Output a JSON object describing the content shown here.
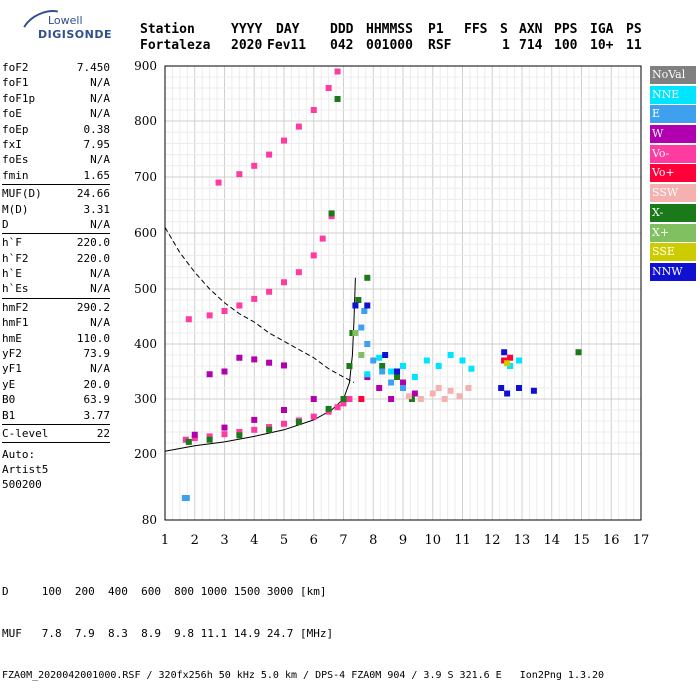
{
  "logo": {
    "line1": "Lowell",
    "line2": "DIGISONDE"
  },
  "header": {
    "labels": [
      "Station",
      "YYYY",
      "DAY",
      "DDD",
      "HHMMSS",
      "P1",
      "FFS",
      "S",
      "AXN",
      "PPS",
      "IGA",
      "PS"
    ],
    "values": [
      "Fortaleza",
      "2020",
      "Fev11",
      "042",
      "001000",
      "RSF",
      "1",
      "714",
      "100",
      "10+",
      "11"
    ]
  },
  "params": [
    {
      "name": "foF2",
      "value": "7.450"
    },
    {
      "name": "foF1",
      "value": "N/A"
    },
    {
      "name": "foF1p",
      "value": "N/A"
    },
    {
      "name": "foE",
      "value": "N/A"
    },
    {
      "name": "foEp",
      "value": "0.38"
    },
    {
      "name": "fxI",
      "value": "7.95"
    },
    {
      "name": "foEs",
      "value": "N/A"
    },
    {
      "name": "fmin",
      "value": "1.65"
    },
    {
      "name": "MUF(D)",
      "value": "24.66"
    },
    {
      "name": "M(D)",
      "value": "3.31"
    },
    {
      "name": "D",
      "value": "N/A"
    },
    {
      "name": "h`F",
      "value": "220.0"
    },
    {
      "name": "h`F2",
      "value": "220.0"
    },
    {
      "name": "h`E",
      "value": "N/A"
    },
    {
      "name": "h`Es",
      "value": "N/A"
    },
    {
      "name": "hmF2",
      "value": "290.2"
    },
    {
      "name": "hmF1",
      "value": "N/A"
    },
    {
      "name": "hmE",
      "value": "110.0"
    },
    {
      "name": "yF2",
      "value": "73.9"
    },
    {
      "name": "yF1",
      "value": "N/A"
    },
    {
      "name": "yE",
      "value": "20.0"
    },
    {
      "name": "B0",
      "value": "63.9"
    },
    {
      "name": "B1",
      "value": "3.77"
    },
    {
      "name": "C-level",
      "value": "22"
    }
  ],
  "auto": {
    "line1": "Auto:",
    "line2": "Artist5",
    "line3": "500200"
  },
  "legend": [
    {
      "label": "NoVal",
      "color": "#808080"
    },
    {
      "label": "NNE",
      "color": "#00e5ff"
    },
    {
      "label": "E",
      "color": "#3fa0f0"
    },
    {
      "label": "W",
      "color": "#b000b0"
    },
    {
      "label": "Vo-",
      "color": "#ff3aa0"
    },
    {
      "label": "Vo+",
      "color": "#ff0038"
    },
    {
      "label": "SSW",
      "color": "#f5b0b0"
    },
    {
      "label": "X-",
      "color": "#1a7a1a"
    },
    {
      "label": "X+",
      "color": "#80c060"
    },
    {
      "label": "SSE",
      "color": "#cccc00"
    },
    {
      "label": "NNW",
      "color": "#1010d0"
    }
  ],
  "footer": {
    "line1": "D     100  200  400  600  800 1000 1500 3000 [km]",
    "line2": "MUF   7.8  7.9  8.3  8.9  9.8 11.1 14.9 24.7 [MHz]",
    "line3": "FZA0M_2020042001000.RSF / 320fx256h 50 kHz 5.0 km / DPS-4 FZA0M 904 / 3.9 S 321.6 E   Ion2Png 1.3.20"
  },
  "chart_data": {
    "type": "scatter",
    "xlim": [
      1,
      17
    ],
    "ylim": [
      80,
      900
    ],
    "x_ticks": [
      1,
      2,
      3,
      4,
      5,
      6,
      7,
      8,
      9,
      10,
      11,
      12,
      13,
      14,
      15,
      16,
      17
    ],
    "y_ticks": [
      80,
      200,
      300,
      400,
      500,
      600,
      700,
      800,
      900
    ],
    "grid": true,
    "series": [
      {
        "name": "Vo-",
        "color": "#ff3aa0",
        "points": [
          [
            1.7,
            226
          ],
          [
            2,
            229
          ],
          [
            2.5,
            232
          ],
          [
            3,
            236
          ],
          [
            3.5,
            240
          ],
          [
            4,
            244
          ],
          [
            4.5,
            249
          ],
          [
            5,
            255
          ],
          [
            5.5,
            261
          ],
          [
            6,
            268
          ],
          [
            6.5,
            277
          ],
          [
            6.8,
            285
          ],
          [
            7,
            292
          ],
          [
            7.2,
            300
          ],
          [
            1.8,
            445
          ],
          [
            2.5,
            452
          ],
          [
            3,
            460
          ],
          [
            3.5,
            470
          ],
          [
            4,
            482
          ],
          [
            4.5,
            495
          ],
          [
            5,
            512
          ],
          [
            5.5,
            530
          ],
          [
            6,
            560
          ],
          [
            6.3,
            590
          ],
          [
            6.6,
            630
          ],
          [
            2.8,
            690
          ],
          [
            3.5,
            705
          ],
          [
            4,
            720
          ],
          [
            4.5,
            740
          ],
          [
            5,
            765
          ],
          [
            5.5,
            790
          ],
          [
            6,
            820
          ],
          [
            6.5,
            860
          ],
          [
            6.8,
            890
          ]
        ]
      },
      {
        "name": "W",
        "color": "#b000b0",
        "points": [
          [
            2,
            235
          ],
          [
            3,
            248
          ],
          [
            4,
            262
          ],
          [
            5,
            280
          ],
          [
            6,
            300
          ],
          [
            3.5,
            375
          ],
          [
            4,
            372
          ],
          [
            4.5,
            366
          ],
          [
            5,
            361
          ],
          [
            2.5,
            345
          ],
          [
            3,
            350
          ],
          [
            7.8,
            340
          ],
          [
            8.2,
            320
          ],
          [
            8.6,
            300
          ],
          [
            9,
            330
          ],
          [
            9.4,
            310
          ],
          [
            12.4,
            370
          ],
          [
            12.6,
            360
          ]
        ]
      },
      {
        "name": "X-",
        "color": "#1a7a1a",
        "points": [
          [
            1.8,
            222
          ],
          [
            2.5,
            226
          ],
          [
            3.5,
            234
          ],
          [
            4.5,
            244
          ],
          [
            5.5,
            258
          ],
          [
            6.5,
            282
          ],
          [
            7,
            300
          ],
          [
            7.2,
            360
          ],
          [
            7.3,
            420
          ],
          [
            7.5,
            480
          ],
          [
            7.8,
            520
          ],
          [
            6.6,
            635
          ],
          [
            6.8,
            840
          ],
          [
            8.3,
            360
          ],
          [
            8.8,
            340
          ],
          [
            9.3,
            300
          ],
          [
            14.9,
            385
          ]
        ]
      },
      {
        "name": "NNE",
        "color": "#00e5ff",
        "points": [
          [
            7.8,
            345
          ],
          [
            8.2,
            375
          ],
          [
            8.6,
            350
          ],
          [
            9,
            360
          ],
          [
            9.4,
            340
          ],
          [
            9.8,
            370
          ],
          [
            10.2,
            360
          ],
          [
            10.6,
            380
          ],
          [
            11,
            370
          ],
          [
            11.3,
            355
          ],
          [
            12.6,
            360
          ],
          [
            12.9,
            370
          ]
        ]
      },
      {
        "name": "E",
        "color": "#3fa0f0",
        "points": [
          [
            7.6,
            430
          ],
          [
            7.8,
            400
          ],
          [
            8,
            370
          ],
          [
            8.3,
            350
          ],
          [
            8.6,
            330
          ],
          [
            9,
            320
          ],
          [
            7.7,
            460
          ]
        ]
      },
      {
        "name": "SSW",
        "color": "#f5b0b0",
        "points": [
          [
            9.2,
            305
          ],
          [
            9.6,
            300
          ],
          [
            10,
            310
          ],
          [
            10.2,
            320
          ],
          [
            10.4,
            300
          ],
          [
            10.6,
            315
          ],
          [
            10.9,
            305
          ],
          [
            11.2,
            320
          ]
        ]
      },
      {
        "name": "NNW",
        "color": "#1010d0",
        "points": [
          [
            7.4,
            470
          ],
          [
            7.8,
            470
          ],
          [
            8.4,
            380
          ],
          [
            8.8,
            350
          ],
          [
            12.3,
            320
          ],
          [
            12.5,
            310
          ],
          [
            12.9,
            320
          ],
          [
            13.4,
            315
          ],
          [
            12.4,
            385
          ]
        ]
      },
      {
        "name": "Vo+",
        "color": "#ff0038",
        "points": [
          [
            7.6,
            300
          ],
          [
            12.4,
            370
          ],
          [
            12.6,
            375
          ]
        ]
      },
      {
        "name": "SSE",
        "color": "#cccc00",
        "points": [
          [
            12.5,
            365
          ]
        ]
      },
      {
        "name": "X+",
        "color": "#80c060",
        "points": [
          [
            7.4,
            420
          ],
          [
            7.6,
            380
          ]
        ]
      }
    ],
    "profile_line": [
      [
        1,
        205
      ],
      [
        2,
        215
      ],
      [
        3,
        222
      ],
      [
        4,
        232
      ],
      [
        5,
        244
      ],
      [
        6,
        262
      ],
      [
        6.6,
        280
      ],
      [
        7,
        300
      ],
      [
        7.2,
        330
      ],
      [
        7.3,
        380
      ],
      [
        7.35,
        440
      ],
      [
        7.4,
        520
      ]
    ],
    "dashed_line": [
      [
        1,
        610
      ],
      [
        1.5,
        565
      ],
      [
        2,
        530
      ],
      [
        2.5,
        500
      ],
      [
        3,
        475
      ],
      [
        3.5,
        455
      ],
      [
        4,
        440
      ],
      [
        4.5,
        420
      ],
      [
        5,
        405
      ],
      [
        5.5,
        390
      ],
      [
        6,
        375
      ],
      [
        6.5,
        355
      ],
      [
        7,
        340
      ],
      [
        7.35,
        330
      ]
    ],
    "annotation_point": [
      1.7,
      120
    ]
  }
}
